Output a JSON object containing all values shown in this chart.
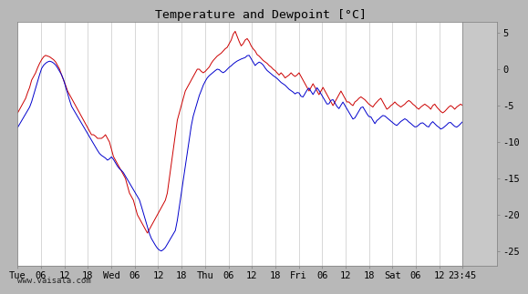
{
  "title": "Temperature and Dewpoint [°C]",
  "ylabel_right_ticks": [
    5,
    0,
    -5,
    -10,
    -15,
    -20,
    -25
  ],
  "xlabel_ticks": [
    "Tue",
    "06",
    "12",
    "18",
    "Wed",
    "06",
    "12",
    "18",
    "Thu",
    "06",
    "12",
    "18",
    "Fri",
    "06",
    "12",
    "18",
    "Sat",
    "06",
    "12",
    "23:45"
  ],
  "plot_bg_color": "#ffffff",
  "grid_color": "#c8c8c8",
  "temp_color": "#cc0000",
  "dewpoint_color": "#0000cc",
  "watermark": "www.vaisala.com",
  "line_width": 0.7,
  "title_fontsize": 9.5,
  "tick_fontsize": 7.5,
  "watermark_fontsize": 6.5,
  "outer_bg_color": "#b8b8b8",
  "right_panel_color": "#c8c8c8",
  "temp_data": [
    -6.0,
    -5.5,
    -5.0,
    -4.5,
    -4.0,
    -3.2,
    -2.5,
    -1.5,
    -1.0,
    -0.5,
    0.2,
    0.8,
    1.3,
    1.7,
    1.9,
    1.8,
    1.7,
    1.5,
    1.3,
    1.0,
    0.5,
    0.0,
    -0.8,
    -1.5,
    -2.2,
    -3.0,
    -3.5,
    -4.0,
    -4.5,
    -5.0,
    -5.5,
    -6.0,
    -6.5,
    -7.0,
    -7.5,
    -8.0,
    -8.5,
    -9.0,
    -9.0,
    -9.2,
    -9.5,
    -9.5,
    -9.5,
    -9.3,
    -9.0,
    -9.5,
    -10.0,
    -11.0,
    -12.0,
    -12.5,
    -13.0,
    -13.5,
    -14.0,
    -14.5,
    -15.0,
    -16.0,
    -17.0,
    -17.5,
    -18.0,
    -19.0,
    -20.0,
    -20.5,
    -21.0,
    -21.5,
    -22.0,
    -22.5,
    -22.0,
    -21.5,
    -21.0,
    -20.5,
    -20.0,
    -19.5,
    -19.0,
    -18.5,
    -18.0,
    -17.0,
    -15.0,
    -13.0,
    -11.0,
    -9.0,
    -7.0,
    -6.0,
    -5.0,
    -4.0,
    -3.0,
    -2.5,
    -2.0,
    -1.5,
    -1.0,
    -0.5,
    0.0,
    0.0,
    -0.3,
    -0.5,
    -0.3,
    0.0,
    0.3,
    0.8,
    1.2,
    1.5,
    1.8,
    2.0,
    2.2,
    2.5,
    2.8,
    3.0,
    3.5,
    4.0,
    4.8,
    5.2,
    4.5,
    3.8,
    3.2,
    3.5,
    4.0,
    4.2,
    3.8,
    3.2,
    2.8,
    2.5,
    2.0,
    1.8,
    1.5,
    1.2,
    1.0,
    0.8,
    0.5,
    0.3,
    0.0,
    -0.2,
    -0.5,
    -0.8,
    -0.5,
    -0.8,
    -1.2,
    -1.0,
    -0.8,
    -0.5,
    -0.8,
    -1.0,
    -0.8,
    -0.5,
    -1.0,
    -1.5,
    -2.0,
    -2.5,
    -3.0,
    -2.5,
    -2.0,
    -2.5,
    -3.0,
    -3.5,
    -3.0,
    -2.5,
    -3.0,
    -3.5,
    -4.0,
    -4.5,
    -5.0,
    -4.5,
    -4.0,
    -3.5,
    -3.0,
    -3.5,
    -4.0,
    -4.5,
    -4.5,
    -4.8,
    -5.0,
    -4.5,
    -4.3,
    -4.0,
    -3.8,
    -4.0,
    -4.2,
    -4.5,
    -4.8,
    -5.0,
    -5.2,
    -4.8,
    -4.5,
    -4.2,
    -4.0,
    -4.5,
    -5.0,
    -5.5,
    -5.3,
    -5.0,
    -4.8,
    -4.5,
    -4.8,
    -5.0,
    -5.2,
    -5.0,
    -4.8,
    -4.5,
    -4.3,
    -4.5,
    -4.8,
    -5.0,
    -5.3,
    -5.5,
    -5.2,
    -5.0,
    -4.8,
    -5.0,
    -5.2,
    -5.5,
    -5.0,
    -4.8,
    -5.2,
    -5.5,
    -5.8,
    -6.0,
    -5.8,
    -5.5,
    -5.2,
    -5.0,
    -5.2,
    -5.5,
    -5.2,
    -5.0,
    -4.8,
    -5.0
  ],
  "dewpoint_data": [
    -8.0,
    -7.5,
    -7.0,
    -6.5,
    -6.0,
    -5.5,
    -5.0,
    -4.0,
    -3.0,
    -2.0,
    -1.0,
    0.0,
    0.5,
    0.8,
    1.0,
    1.1,
    1.0,
    0.8,
    0.5,
    0.0,
    -0.5,
    -1.0,
    -2.0,
    -3.0,
    -4.0,
    -5.0,
    -5.5,
    -6.0,
    -6.5,
    -7.0,
    -7.5,
    -8.0,
    -8.5,
    -9.0,
    -9.5,
    -10.0,
    -10.5,
    -11.0,
    -11.5,
    -11.8,
    -12.0,
    -12.2,
    -12.5,
    -12.3,
    -12.0,
    -12.5,
    -13.0,
    -13.5,
    -13.8,
    -14.0,
    -14.5,
    -15.0,
    -15.5,
    -16.0,
    -16.5,
    -17.0,
    -17.5,
    -18.0,
    -19.0,
    -20.0,
    -21.0,
    -22.0,
    -23.0,
    -23.5,
    -24.0,
    -24.5,
    -24.8,
    -25.0,
    -24.8,
    -24.5,
    -24.0,
    -23.5,
    -23.0,
    -22.5,
    -22.0,
    -20.0,
    -18.0,
    -16.0,
    -14.0,
    -12.0,
    -10.0,
    -8.0,
    -6.5,
    -5.5,
    -4.5,
    -3.5,
    -2.8,
    -2.0,
    -1.5,
    -1.0,
    -0.8,
    -0.5,
    -0.3,
    0.0,
    0.0,
    -0.3,
    -0.5,
    -0.3,
    0.0,
    0.3,
    0.5,
    0.8,
    1.0,
    1.2,
    1.3,
    1.5,
    1.5,
    1.8,
    2.0,
    1.5,
    1.0,
    0.5,
    0.8,
    1.0,
    0.8,
    0.5,
    0.0,
    -0.3,
    -0.5,
    -0.8,
    -1.0,
    -1.2,
    -1.5,
    -1.8,
    -2.0,
    -2.2,
    -2.5,
    -2.8,
    -3.0,
    -3.2,
    -3.5,
    -3.0,
    -3.5,
    -4.0,
    -3.5,
    -3.0,
    -2.5,
    -3.0,
    -3.5,
    -3.0,
    -2.5,
    -3.0,
    -3.5,
    -4.0,
    -4.5,
    -5.0,
    -4.5,
    -4.0,
    -4.5,
    -5.0,
    -5.5,
    -5.0,
    -4.5,
    -5.0,
    -5.5,
    -6.0,
    -6.5,
    -7.0,
    -6.5,
    -6.0,
    -5.5,
    -5.0,
    -5.5,
    -6.0,
    -6.5,
    -6.5,
    -7.0,
    -7.5,
    -7.0,
    -6.8,
    -6.5,
    -6.3,
    -6.5,
    -6.8,
    -7.0,
    -7.3,
    -7.5,
    -7.8,
    -7.5,
    -7.2,
    -7.0,
    -6.8,
    -7.0,
    -7.3,
    -7.5,
    -7.8,
    -8.0,
    -7.8,
    -7.5,
    -7.3,
    -7.5,
    -7.8,
    -8.0,
    -7.5,
    -7.2,
    -7.5,
    -7.8,
    -8.0,
    -8.3,
    -8.0,
    -7.8,
    -7.5,
    -7.2,
    -7.5,
    -7.8,
    -8.0,
    -7.8,
    -7.5,
    -7.2
  ]
}
